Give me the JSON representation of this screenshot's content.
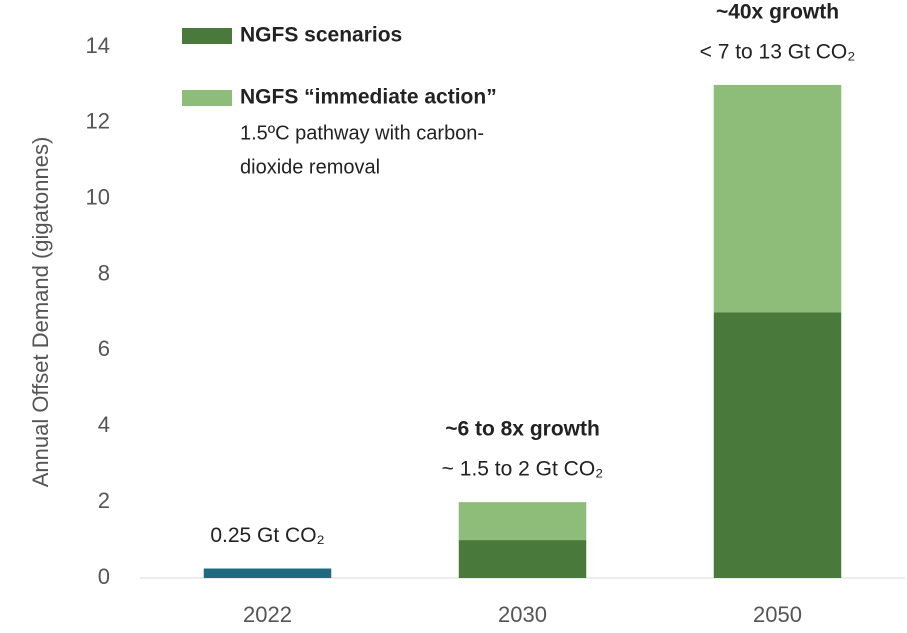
{
  "chart_data": {
    "type": "stacked_bar",
    "y_label": "Annual Offset Demand (gigatonnes)",
    "categories": [
      "2022",
      "2030",
      "2050"
    ],
    "series": [
      {
        "color": "#1f6a80",
        "values": [
          0.25,
          null,
          null
        ]
      },
      {
        "name": "NGFS scenarios",
        "color": "#4a7a3b",
        "values": [
          null,
          1,
          7
        ]
      },
      {
        "name": "NGFS “immediate action”",
        "color": "#8dbd78",
        "values": [
          null,
          1,
          6
        ]
      }
    ],
    "legend_note": [
      "1.5ºC pathway with carbon-",
      "dioxide removal"
    ],
    "annotations": [
      {
        "text": "0.25 Gt CO₂"
      },
      {
        "title": "~6 to 8x growth",
        "text": "~ 1.5 to 2 Gt CO₂"
      },
      {
        "title": "~40x growth",
        "text": "< 7 to 13 Gt CO₂"
      }
    ],
    "ylim": [
      0,
      14
    ],
    "yticks": [
      0,
      2,
      4,
      6,
      8,
      10,
      12,
      14
    ],
    "grid": false
  }
}
